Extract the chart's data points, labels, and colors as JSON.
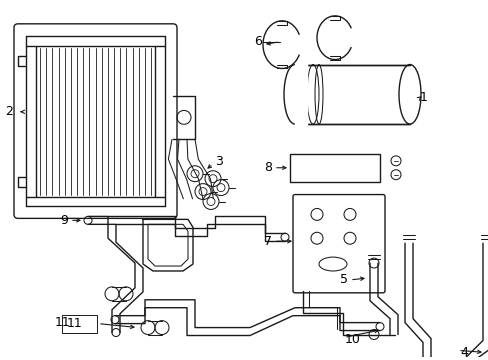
{
  "background_color": "#ffffff",
  "line_color": "#1a1a1a",
  "figsize": [
    4.89,
    3.6
  ],
  "dpi": 100,
  "lw": 1.0,
  "lw_thin": 0.75
}
